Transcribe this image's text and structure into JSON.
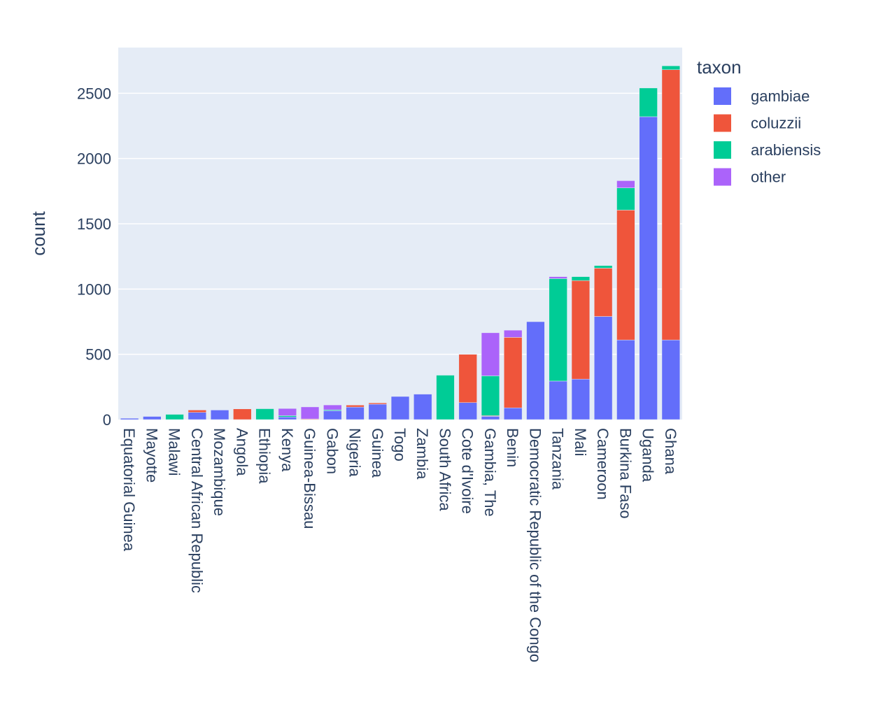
{
  "chart_data": {
    "type": "bar",
    "barmode": "stack",
    "title": "",
    "xlabel": "",
    "ylabel": "count",
    "ylim": [
      0,
      2850
    ],
    "yticks": [
      0,
      500,
      1000,
      1500,
      2000,
      2500
    ],
    "grid": true,
    "legend": {
      "title": "taxon",
      "placement": "top-right, outside plot"
    },
    "categories": [
      "Equatorial Guinea",
      "Mayotte",
      "Malawi",
      "Central African Republic",
      "Mozambique",
      "Angola",
      "Ethiopia",
      "Kenya",
      "Guinea-Bissau",
      "Gabon",
      "Nigeria",
      "Guinea",
      "Togo",
      "Zambia",
      "South Africa",
      "Cote d'Ivoire",
      "Gambia, The",
      "Benin",
      "Democratic Republic of the Congo",
      "Tanzania",
      "Mali",
      "Cameroon",
      "Burkina Faso",
      "Uganda",
      "Ghana"
    ],
    "series": [
      {
        "name": "gambiae",
        "color": "#636efa",
        "values": [
          10,
          24,
          0,
          55,
          73,
          0,
          0,
          20,
          0,
          68,
          96,
          118,
          177,
          195,
          0,
          130,
          25,
          90,
          750,
          295,
          310,
          790,
          610,
          2320,
          610
        ]
      },
      {
        "name": "coluzzii",
        "color": "#ef553b",
        "values": [
          0,
          0,
          0,
          18,
          0,
          82,
          0,
          0,
          5,
          0,
          15,
          10,
          0,
          0,
          0,
          370,
          5,
          540,
          0,
          0,
          755,
          370,
          995,
          0,
          2070
        ]
      },
      {
        "name": "arabiensis",
        "color": "#00cc96",
        "values": [
          0,
          0,
          40,
          0,
          0,
          0,
          83,
          10,
          0,
          7,
          0,
          0,
          0,
          0,
          340,
          0,
          305,
          0,
          0,
          785,
          30,
          20,
          170,
          220,
          30
        ]
      },
      {
        "name": "other",
        "color": "#ab63fa",
        "values": [
          0,
          0,
          0,
          0,
          0,
          0,
          0,
          55,
          92,
          37,
          0,
          0,
          0,
          0,
          0,
          0,
          330,
          55,
          0,
          15,
          0,
          0,
          55,
          0,
          0
        ]
      }
    ],
    "colors": {
      "plot_background": "#e5ecf6",
      "grid": "#ffffff",
      "text": "#2a3f5f"
    }
  }
}
